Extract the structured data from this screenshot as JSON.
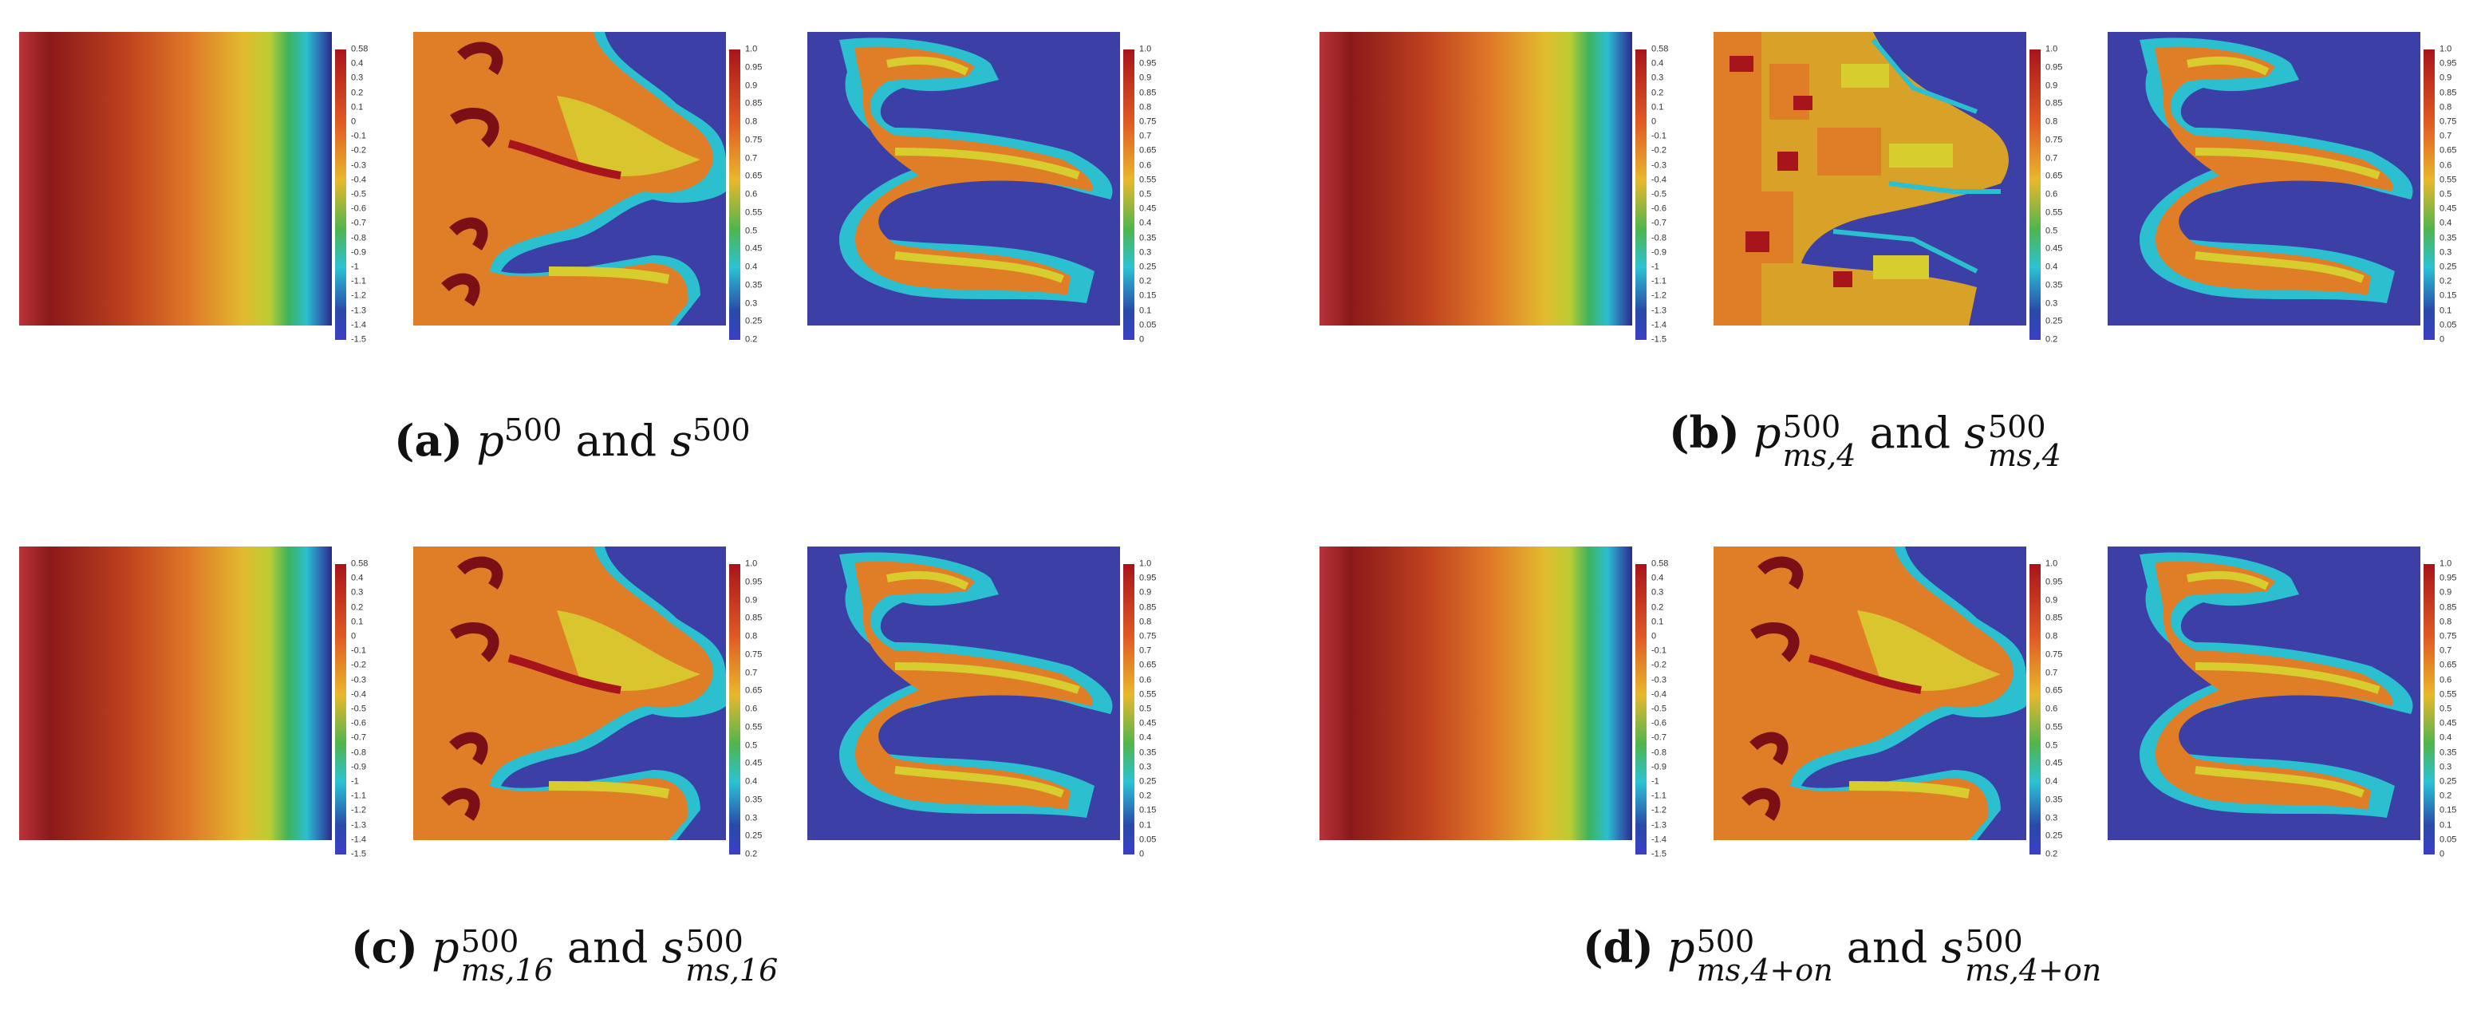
{
  "colors": {
    "blue": "#3b3fa6",
    "cyan": "#27b9c9",
    "green": "#5ab646",
    "yellow": "#d8cd2e",
    "orange": "#e07826",
    "red": "#b52a1d",
    "darkred": "#7a1016"
  },
  "colorbars": {
    "pressure_a": [
      "0.58",
      "0.4",
      "0.3",
      "0.2",
      "0.1",
      "0",
      "-0.1",
      "-0.2",
      "-0.3",
      "-0.4",
      "-0.5",
      "-0.6",
      "-0.7",
      "-0.8",
      "-0.9",
      "-1",
      "-1.1",
      "-1.2",
      "-1.3",
      "-1.4",
      "-1.5"
    ],
    "sat_a": [
      "1.0",
      "0.95",
      "0.9",
      "0.85",
      "0.8",
      "0.75",
      "0.7",
      "0.65",
      "0.6",
      "0.55",
      "0.5",
      "0.45",
      "0.4",
      "0.35",
      "0.3",
      "0.25",
      "0.2"
    ],
    "sat2_a": [
      "1.0",
      "0.95",
      "0.9",
      "0.85",
      "0.8",
      "0.75",
      "0.7",
      "0.65",
      "0.6",
      "0.55",
      "0.5",
      "0.45",
      "0.4",
      "0.35",
      "0.3",
      "0.25",
      "0.2",
      "0.15",
      "0.1",
      "0.05",
      "0"
    ],
    "pressure_b": [
      "0.58",
      "0.4",
      "0.3",
      "0.2",
      "0.1",
      "0",
      "-0.1",
      "-0.2",
      "-0.3",
      "-0.4",
      "-0.5",
      "-0.6",
      "-0.7",
      "-0.8",
      "-0.9",
      "-1",
      "-1.1",
      "-1.2",
      "-1.3",
      "-1.4",
      "-1.5"
    ],
    "sat_b": [
      "1.0",
      "0.95",
      "0.9",
      "0.85",
      "0.8",
      "0.75",
      "0.7",
      "0.65",
      "0.6",
      "0.55",
      "0.5",
      "0.45",
      "0.4",
      "0.35",
      "0.3",
      "0.25",
      "0.2"
    ],
    "sat2_b": [
      "1.0",
      "0.95",
      "0.9",
      "0.85",
      "0.8",
      "0.75",
      "0.7",
      "0.65",
      "0.6",
      "0.55",
      "0.5",
      "0.45",
      "0.4",
      "0.35",
      "0.3",
      "0.25",
      "0.2",
      "0.15",
      "0.1",
      "0.05",
      "0"
    ]
  },
  "captions": {
    "a": {
      "label": "(a)",
      "p": "p",
      "p_sup": "500",
      "and": "and",
      "s": "s",
      "s_sup": "500"
    },
    "b": {
      "label": "(b)",
      "p": "p",
      "p_sup": "500",
      "p_sub": "ms,4",
      "and": "and",
      "s": "s",
      "s_sup": "500",
      "s_sub": "ms,4"
    },
    "c": {
      "label": "(c)",
      "p": "p",
      "p_sup": "500",
      "p_sub": "ms,16",
      "and": "and",
      "s": "s",
      "s_sup": "500",
      "s_sub": "ms,16"
    },
    "d": {
      "label": "(d)",
      "p": "p",
      "p_sup": "500",
      "p_sub": "ms,4+on",
      "and": "and",
      "s": "s",
      "s_sup": "500",
      "s_sub": "ms,4+on"
    }
  }
}
